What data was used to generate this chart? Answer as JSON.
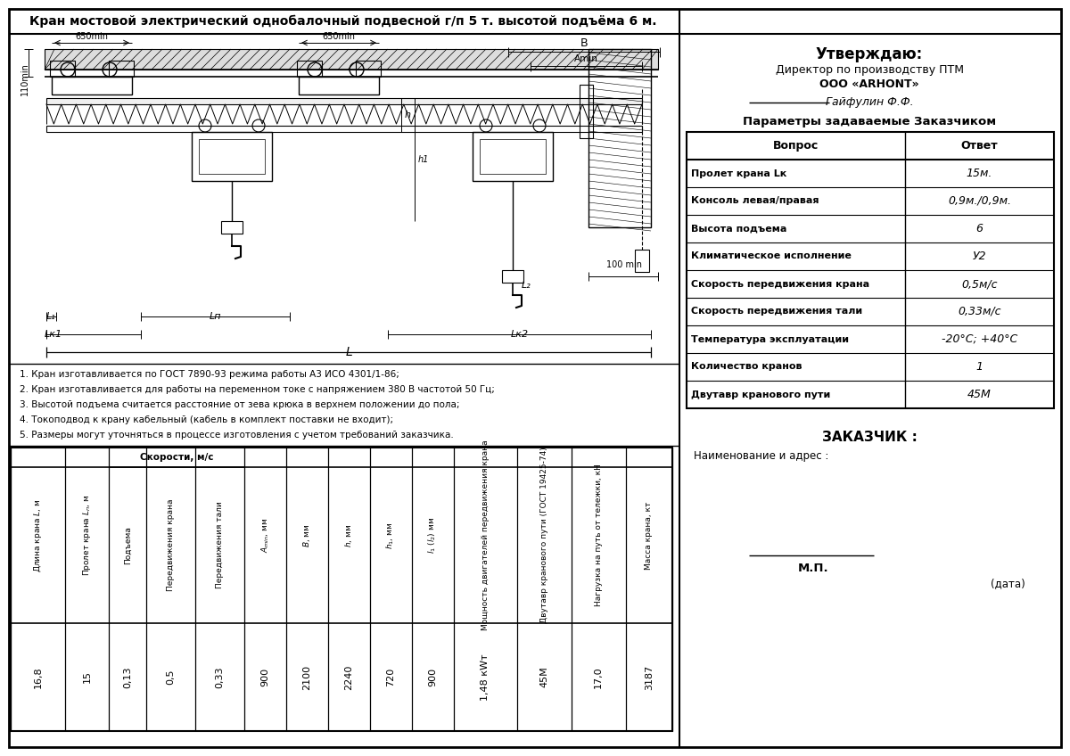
{
  "title": "Кран мостовой электрический однобалочный подвесной г/п 5 т. высотой подъёма 6 м.",
  "bg_color": "#ffffff",
  "right_panel": {
    "utv_title": "Утверждаю:",
    "utv_line1": "Директор по производству ПТМ",
    "utv_line2": "ООО «ARHONT»",
    "utv_line3": "Гайфулин Ф.Ф.",
    "params_title": "Параметры задаваемые Заказчиком",
    "table_headers": [
      "Вопрос",
      "Ответ"
    ],
    "table_rows": [
      [
        "Пролет крана Lк",
        "15м."
      ],
      [
        "Консоль левая/правая",
        "0,9м./0,9м."
      ],
      [
        "Высота подъема",
        "6"
      ],
      [
        "Климатическое исполнение",
        "У2"
      ],
      [
        "Скорость передвижения крана",
        "0,5м/с"
      ],
      [
        "Скорость передвижения тали",
        "0,33м/с"
      ],
      [
        "Температура эксплуатации",
        "-20°C; +40°C"
      ],
      [
        "Количество кранов",
        "1"
      ],
      [
        "Двутавр кранового пути",
        "45М"
      ]
    ],
    "zakaz_title": "ЗАКАЗЧИК :",
    "zakaz_line": "Наименование и адрес :",
    "mp_text": "М.П.",
    "date_text": "(дата)"
  },
  "notes": [
    "1. Кран изготавливается по ГОСТ 7890-93 режима работы А3 ИСО 4301/1-86;",
    "2. Кран изготавливается для работы на переменном токе с напряжением 380 В частотой 50 Гц;",
    "3. Высотой подъема считается расстояние от зева крюка в верхнем положении до пола;",
    "4. Токоподвод к крану кабельный (кабель в комплект поставки не входит);",
    "5. Размеры могут уточняться в процессе изготовления с учетом требований заказчика."
  ],
  "bottom_table": {
    "col_headers_plain": [
      "Длина крана L, м",
      "Пролет крана Lп, м",
      "Подъема",
      "Передвижения крана",
      "Передвижения тали",
      "Amin, мм",
      "B, мм",
      "h, мм",
      "h1, мм",
      "l1 (l2) мм",
      "Мощность двигателей передвижения крана",
      "Двутавр кранового пути (ГОСТ 19425-74)",
      "Нагрузка на путь от тележки, кН",
      "Масса крана, кт"
    ],
    "speed_group": "Скорости, м/с",
    "values": [
      "16,8",
      "15",
      "0,13",
      "0,5",
      "0,33",
      "900",
      "2100",
      "2240",
      "720",
      "900",
      "1,48 кWт",
      "45М",
      "17,0",
      "3187"
    ],
    "col_widths_rel": [
      1.1,
      0.9,
      0.75,
      1.0,
      1.0,
      0.85,
      0.85,
      0.85,
      0.85,
      0.85,
      1.3,
      1.1,
      1.1,
      0.95
    ]
  }
}
